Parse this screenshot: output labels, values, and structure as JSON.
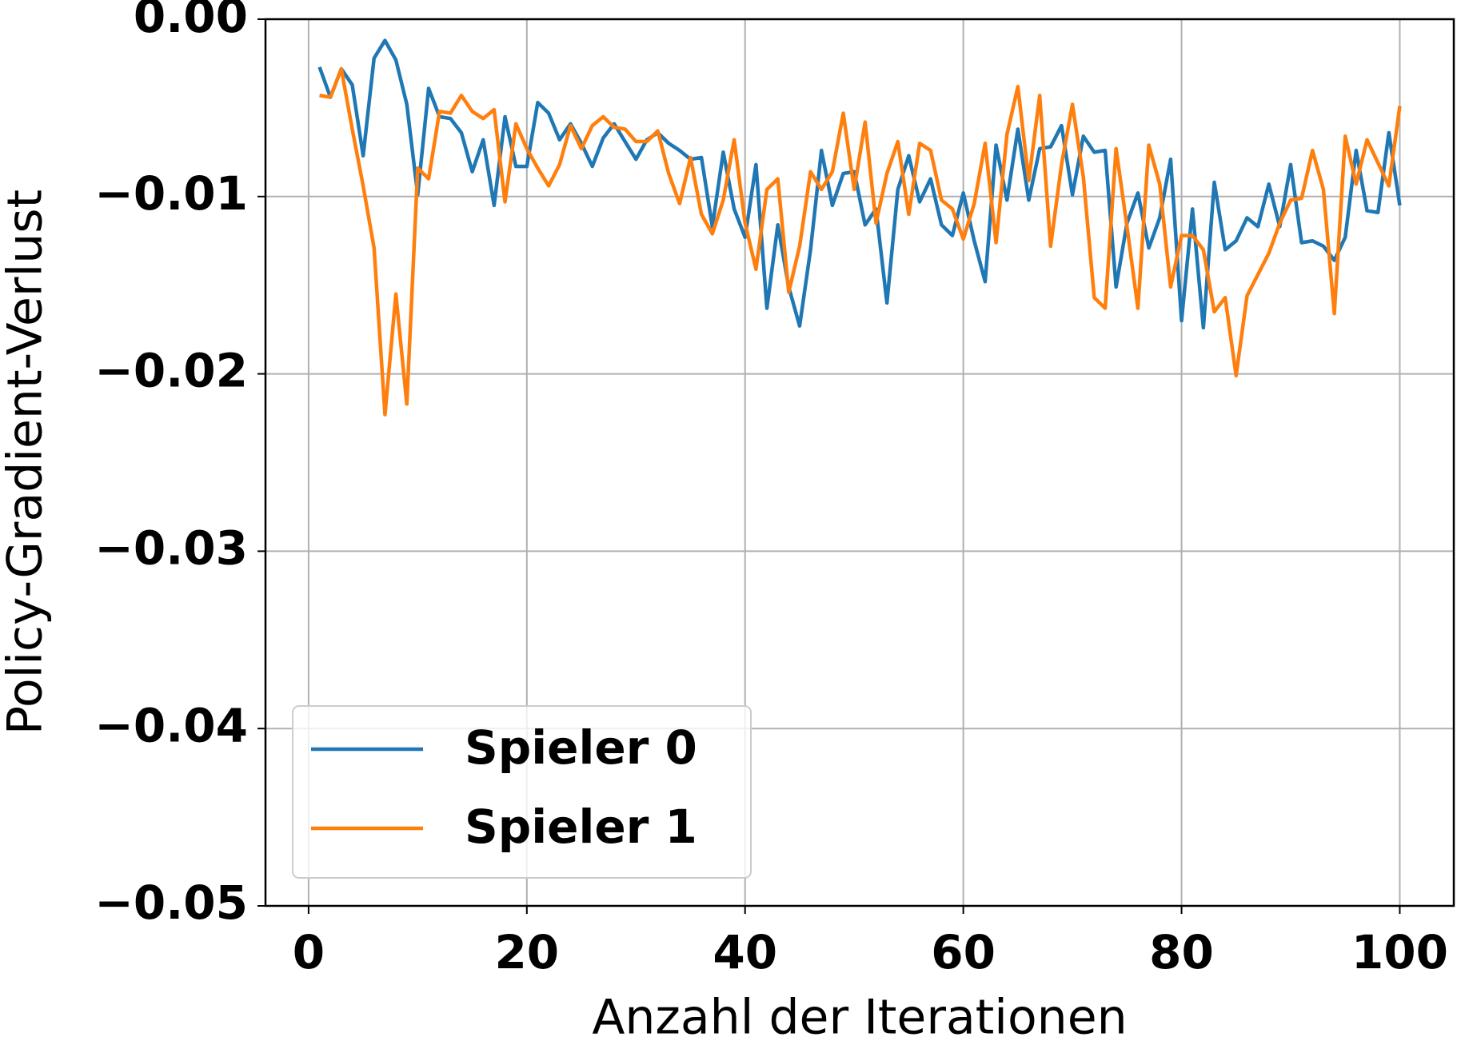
{
  "chart_data": {
    "type": "line",
    "xlabel": "Anzahl der Iterationen",
    "ylabel": "Policy-Gradient-Verlust",
    "x": [
      1,
      2,
      3,
      4,
      5,
      6,
      7,
      8,
      9,
      10,
      11,
      12,
      13,
      14,
      15,
      16,
      17,
      18,
      19,
      20,
      21,
      22,
      23,
      24,
      25,
      26,
      27,
      28,
      29,
      30,
      31,
      32,
      33,
      34,
      35,
      36,
      37,
      38,
      39,
      40,
      41,
      42,
      43,
      44,
      45,
      46,
      47,
      48,
      49,
      50,
      51,
      52,
      53,
      54,
      55,
      56,
      57,
      58,
      59,
      60,
      61,
      62,
      63,
      64,
      65,
      66,
      67,
      68,
      69,
      70,
      71,
      72,
      73,
      74,
      75,
      76,
      77,
      78,
      79,
      80,
      81,
      82,
      83,
      84,
      85,
      86,
      87,
      88,
      89,
      90,
      91,
      92,
      93,
      94,
      95,
      96,
      97,
      98,
      99,
      100
    ],
    "series": [
      {
        "name": "Spieler 0",
        "color": "#1f77b4",
        "values": [
          -0.0027,
          -0.0044,
          -0.0028,
          -0.0037,
          -0.0077,
          -0.0022,
          -0.0012,
          -0.0023,
          -0.0048,
          -0.0099,
          -0.0039,
          -0.0055,
          -0.0056,
          -0.0064,
          -0.0086,
          -0.0068,
          -0.0105,
          -0.0055,
          -0.0083,
          -0.0083,
          -0.0047,
          -0.0053,
          -0.0068,
          -0.0059,
          -0.007,
          -0.0083,
          -0.0067,
          -0.0059,
          -0.0069,
          -0.0079,
          -0.0068,
          -0.0064,
          -0.007,
          -0.0074,
          -0.0079,
          -0.0078,
          -0.0117,
          -0.0075,
          -0.0107,
          -0.0123,
          -0.0082,
          -0.0163,
          -0.0116,
          -0.0151,
          -0.0173,
          -0.013,
          -0.0074,
          -0.0105,
          -0.0087,
          -0.0086,
          -0.0116,
          -0.0107,
          -0.016,
          -0.0096,
          -0.0077,
          -0.0103,
          -0.009,
          -0.0116,
          -0.0122,
          -0.0098,
          -0.0125,
          -0.0148,
          -0.0071,
          -0.0102,
          -0.0062,
          -0.0102,
          -0.0073,
          -0.0072,
          -0.006,
          -0.0099,
          -0.0066,
          -0.0075,
          -0.0074,
          -0.0151,
          -0.0115,
          -0.0098,
          -0.0129,
          -0.0112,
          -0.0079,
          -0.017,
          -0.0107,
          -0.0174,
          -0.0092,
          -0.013,
          -0.0125,
          -0.0112,
          -0.0117,
          -0.0093,
          -0.0117,
          -0.0082,
          -0.0126,
          -0.0125,
          -0.0128,
          -0.0136,
          -0.0123,
          -0.0074,
          -0.0108,
          -0.0109,
          -0.0064,
          -0.0105
        ]
      },
      {
        "name": "Spieler 1",
        "color": "#ff7f0e",
        "values": [
          -0.0043,
          -0.0044,
          -0.0028,
          -0.0062,
          -0.0094,
          -0.0129,
          -0.0223,
          -0.0155,
          -0.0217,
          -0.0084,
          -0.009,
          -0.0052,
          -0.0053,
          -0.0043,
          -0.0052,
          -0.0056,
          -0.0051,
          -0.0103,
          -0.0059,
          -0.0073,
          -0.0084,
          -0.0094,
          -0.0082,
          -0.006,
          -0.0073,
          -0.006,
          -0.0055,
          -0.0061,
          -0.0062,
          -0.0069,
          -0.0069,
          -0.0063,
          -0.0087,
          -0.0104,
          -0.0078,
          -0.011,
          -0.0121,
          -0.0102,
          -0.0068,
          -0.0115,
          -0.0141,
          -0.0096,
          -0.009,
          -0.0154,
          -0.0128,
          -0.0086,
          -0.0096,
          -0.0086,
          -0.0053,
          -0.0096,
          -0.0058,
          -0.0115,
          -0.0087,
          -0.0069,
          -0.011,
          -0.007,
          -0.0074,
          -0.0102,
          -0.0107,
          -0.0124,
          -0.0104,
          -0.007,
          -0.0126,
          -0.0065,
          -0.0038,
          -0.0091,
          -0.0043,
          -0.0128,
          -0.0082,
          -0.0048,
          -0.0089,
          -0.0157,
          -0.0163,
          -0.0073,
          -0.0117,
          -0.0163,
          -0.0071,
          -0.0093,
          -0.0151,
          -0.0122,
          -0.0122,
          -0.013,
          -0.0165,
          -0.0157,
          -0.0201,
          -0.0156,
          -0.0144,
          -0.0132,
          -0.0115,
          -0.0102,
          -0.0101,
          -0.0074,
          -0.0096,
          -0.0166,
          -0.0066,
          -0.0093,
          -0.0068,
          -0.0081,
          -0.0094,
          -0.0049
        ]
      }
    ],
    "xlim": [
      -3.95,
      104.95
    ],
    "xticks": [
      0,
      20,
      40,
      60,
      80,
      100
    ],
    "ylim": [
      -0.05,
      0
    ],
    "yticks": [
      {
        "value": 0,
        "label": "0.00"
      },
      {
        "value": -0.01,
        "label": "−0.01"
      },
      {
        "value": -0.02,
        "label": "−0.02"
      },
      {
        "value": -0.03,
        "label": "−0.03"
      },
      {
        "value": -0.04,
        "label": "−0.04"
      },
      {
        "value": -0.05,
        "label": "−0.05"
      }
    ],
    "grid": true,
    "legend": "lower left"
  }
}
